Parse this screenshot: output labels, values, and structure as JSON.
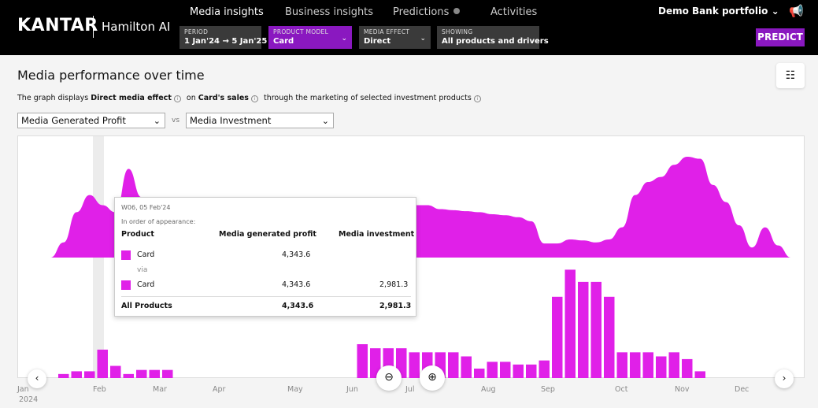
{
  "header": {
    "logo": "KANTAR",
    "app_name": "Hamilton AI",
    "tabs": [
      {
        "label": "Media insights"
      },
      {
        "label": "Business insights"
      },
      {
        "label": "Predictions"
      },
      {
        "label": "Activities"
      }
    ],
    "portfolio": "Demo Bank portfolio",
    "predict_label": "PREDICT",
    "filters": [
      {
        "key": "PERIOD",
        "value": "1 Jan'24 → 5 Jan'25"
      },
      {
        "key": "PRODUCT MODEL",
        "value": "Card"
      },
      {
        "key": "MEDIA EFFECT",
        "value": "Direct"
      },
      {
        "key": "SHOWING",
        "value": "All products and drivers"
      }
    ]
  },
  "main": {
    "title": "Media performance over time",
    "desc": {
      "p1": "The graph displays",
      "effect": "Direct media effect",
      "p2": "on",
      "sales": "Card's sales",
      "p3": "through the marketing of selected investment products"
    },
    "metric_left": "Media Generated Profit",
    "vs": "vs",
    "metric_right": "Media Investment"
  },
  "tooltip": {
    "week": "W06, 05 Feb'24",
    "order": "In order of appearance:",
    "col_product": "Product",
    "col_profit": "Media generated profit",
    "col_invest": "Media investment",
    "row1": {
      "product": "Card",
      "profit": "4,343.6",
      "invest": ""
    },
    "via": "via",
    "row2": {
      "product": "Card",
      "profit": "4,343.6",
      "invest": "2,981.3"
    },
    "total": {
      "product": "All Products",
      "profit": "4,343.6",
      "invest": "2,981.3"
    }
  },
  "chart_data": {
    "type": "area",
    "months": [
      "Jan",
      "Feb",
      "Mar",
      "Apr",
      "May",
      "Jun",
      "Jul",
      "Aug",
      "Sep",
      "Oct",
      "Nov",
      "Dec"
    ],
    "year_label": "2024",
    "series_color": "#e020e8",
    "profit": [
      0,
      0,
      0,
      0.15,
      0.45,
      0.62,
      0.52,
      0.45,
      0.88,
      0.6,
      0.36,
      0.34,
      0.38,
      0.28,
      0.18,
      0.1,
      0.05,
      0.02,
      0,
      0,
      0,
      0,
      0,
      0,
      0,
      0,
      0,
      0,
      0,
      0.4,
      0.52,
      0.52,
      0.48,
      0.47,
      0.46,
      0.45,
      0.43,
      0.42,
      0.4,
      0.36,
      0.14,
      0.14,
      0.18,
      0.17,
      0.15,
      0.18,
      0.3,
      0.62,
      0.75,
      0.8,
      0.92,
      1.0,
      0.98,
      0.72,
      0.55,
      0.32,
      0.1,
      0.3,
      0.12,
      0
    ],
    "investment": [
      0,
      0,
      0,
      0.03,
      0.05,
      0.05,
      0.21,
      0.09,
      0.03,
      0.06,
      0.06,
      0.06,
      0,
      0,
      0,
      0,
      0,
      0,
      0,
      0,
      0,
      0,
      0,
      0,
      0,
      0,
      0.25,
      0.22,
      0.22,
      0.22,
      0.19,
      0.19,
      0.19,
      0.19,
      0.16,
      0.07,
      0.12,
      0.12,
      0.1,
      0.1,
      0.13,
      0.6,
      0.8,
      0.71,
      0.71,
      0.6,
      0.19,
      0.19,
      0.19,
      0.16,
      0.19,
      0.14,
      0.05,
      0,
      0,
      0,
      0,
      0,
      0,
      0
    ],
    "highlight_week": "W06"
  },
  "icons": {
    "prev": "chevron-left-icon",
    "next": "chevron-right-icon",
    "zoom_out": "zoom-out-icon",
    "zoom_in": "zoom-in-icon",
    "config": "chart-settings-icon",
    "announce": "megaphone-icon"
  }
}
